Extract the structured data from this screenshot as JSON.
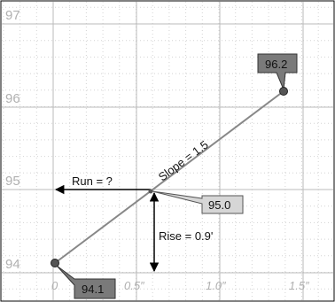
{
  "diagram": {
    "axes": {
      "y_ticks": [
        "97",
        "96",
        "95",
        "94"
      ],
      "x_ticks": [
        "0",
        "0.5″",
        "1.0″",
        "1.5″"
      ],
      "y_values": [
        97,
        96,
        95,
        94
      ],
      "x_values": [
        0,
        0.5,
        1.0,
        1.5
      ]
    },
    "points": [
      {
        "x": 0,
        "y": 94.1,
        "label": "94.1"
      },
      {
        "x": 0.525,
        "y": 94.95,
        "label": "95.0"
      },
      {
        "x": 1.4,
        "y": 96.15,
        "label": "96.2"
      }
    ],
    "labels": {
      "slope": "Slope = 1.5",
      "run": "Run = ?",
      "rise": "Rise = 0.9'"
    },
    "colors": {
      "frame": "#000000",
      "major_grid": "#bbbbbb",
      "minor_grid": "#d4d4d4",
      "tick_text": "#b0b0b0",
      "line": "#888888",
      "callout_dark": "#7a7a7a",
      "callout_light": "#d6d6d6",
      "point_fill": "#555555"
    }
  }
}
